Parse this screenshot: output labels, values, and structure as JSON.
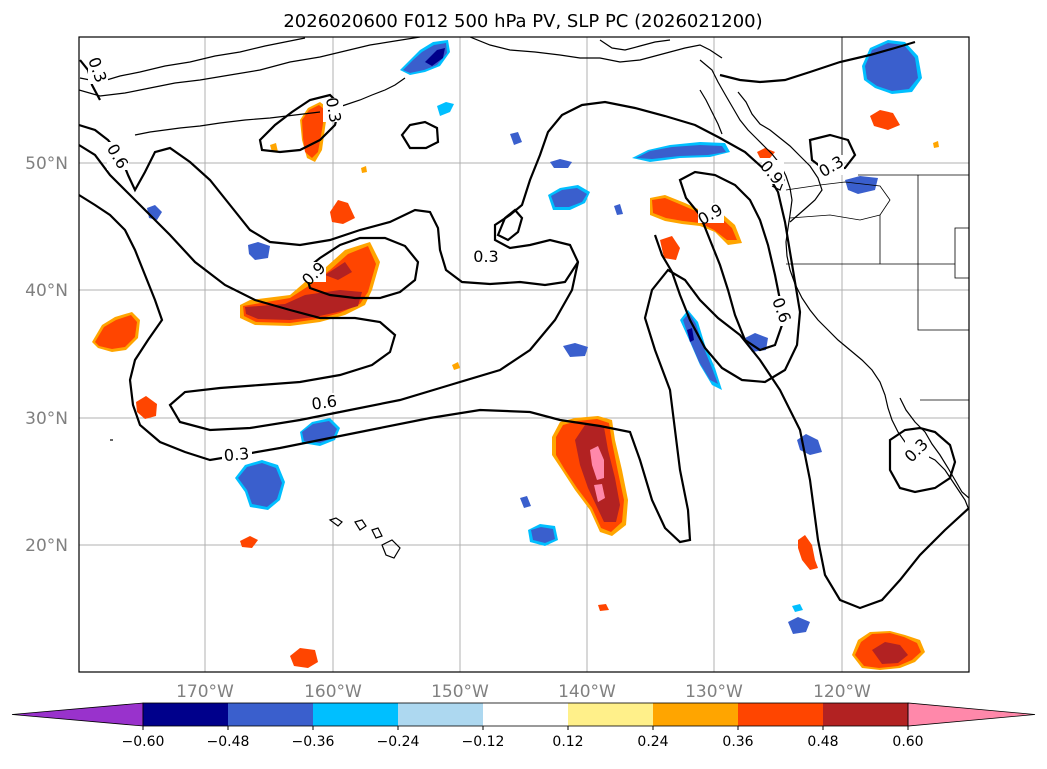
{
  "title": "2026020600 F012 500 hPa PV, SLP PC (2026021200)",
  "lat_labels": [
    "50°N",
    "40°N",
    "30°N",
    "20°N"
  ],
  "lon_labels": [
    "170°W",
    "160°W",
    "150°W",
    "140°W",
    "130°W",
    "120°W"
  ],
  "contour_labels": [
    "0.3",
    "0.6",
    "0.9",
    "0.3",
    "0.9",
    "0.6",
    "0.3",
    "0.6",
    "0.3",
    "0.9",
    "0.3",
    "0.3"
  ],
  "colorbar": {
    "colors": [
      "#9932cc",
      "#00008b",
      "#3a5fcd",
      "#00bfff",
      "#add8f0",
      "#ffffff",
      "#fff08a",
      "#ffa500",
      "#ff4500",
      "#b22222",
      "#ff88aa"
    ],
    "tick_labels": [
      "−0.60",
      "−0.48",
      "−0.36",
      "−0.24",
      "−0.12",
      "0.12",
      "0.24",
      "0.36",
      "0.48",
      "0.60"
    ]
  }
}
